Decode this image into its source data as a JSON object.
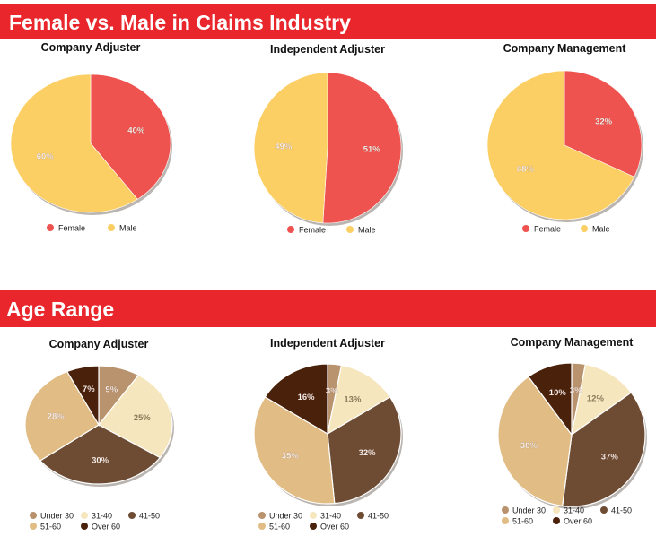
{
  "sections": {
    "gender_title": "Female vs. Male in Claims Industry",
    "age_title": "Age Range"
  },
  "colors": {
    "banner": "#e8262b",
    "female": "#ef5350",
    "male": "#fccf65",
    "under30": "#b8936d",
    "age31_40": "#f6e6bd",
    "age41_50": "#6e4c34",
    "age51_60": "#e1bd85",
    "over60": "#4a210b"
  },
  "chart_data": [
    {
      "type": "pie",
      "section": "gender",
      "title": "Company Adjuster",
      "labels": [
        "Female",
        "Male"
      ],
      "values": [
        40,
        60
      ],
      "data_labels": [
        "40%",
        "60%"
      ],
      "legend": [
        "Female",
        "Male"
      ]
    },
    {
      "type": "pie",
      "section": "gender",
      "title": "Independent Adjuster",
      "labels": [
        "Female",
        "Male"
      ],
      "values": [
        51,
        49
      ],
      "data_labels": [
        "51%",
        "49%"
      ],
      "legend": [
        "Female",
        "Male"
      ]
    },
    {
      "type": "pie",
      "section": "gender",
      "title": "Company Management",
      "labels": [
        "Female",
        "Male"
      ],
      "values": [
        32,
        68
      ],
      "data_labels": [
        "32%",
        "68%"
      ],
      "legend": [
        "Female",
        "Male"
      ]
    },
    {
      "type": "pie",
      "section": "age",
      "title": "Company Adjuster",
      "labels": [
        "Under 30",
        "31-40",
        "41-50",
        "51-60",
        "Over 60"
      ],
      "values": [
        9,
        25,
        30,
        28,
        7
      ],
      "data_labels": [
        "9%",
        "25%",
        "30%",
        "28%",
        "7%"
      ],
      "legend": [
        "Under 30",
        "31-40",
        "41-50",
        "51-60",
        "Over 60"
      ]
    },
    {
      "type": "pie",
      "section": "age",
      "title": "Independent Adjuster",
      "labels": [
        "Under 30",
        "31-40",
        "41-50",
        "51-60",
        "Over 60"
      ],
      "values": [
        3,
        13,
        32,
        35,
        16
      ],
      "data_labels": [
        "3%",
        "13%",
        "32%",
        "35%",
        "16%"
      ],
      "legend": [
        "Under 30",
        "31-40",
        "41-50",
        "51-60",
        "Over 60"
      ]
    },
    {
      "type": "pie",
      "section": "age",
      "title": "Company Management",
      "labels": [
        "Under 30",
        "31-40",
        "41-50",
        "51-60",
        "Over 60"
      ],
      "values": [
        3,
        12,
        37,
        38,
        10
      ],
      "data_labels": [
        "3%",
        "12%",
        "37%",
        "38%",
        "10%"
      ],
      "legend": [
        "Under 30",
        "31-40",
        "41-50",
        "51-60",
        "Over 60"
      ]
    }
  ]
}
